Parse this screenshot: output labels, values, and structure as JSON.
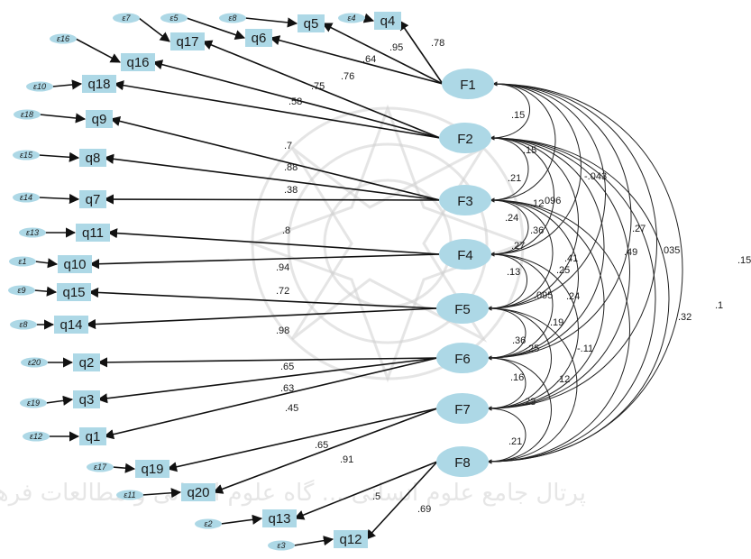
{
  "watermark": {
    "text": "پرتال جامع علوم انسانی ... گاه علوم انسانی و مطالعات فرهنگی"
  },
  "colors": {
    "node_fill": "#add8e6",
    "line": "#111111"
  },
  "factors": [
    {
      "id": "F1",
      "label": "F1"
    },
    {
      "id": "F2",
      "label": "F2"
    },
    {
      "id": "F3",
      "label": "F3"
    },
    {
      "id": "F4",
      "label": "F4"
    },
    {
      "id": "F5",
      "label": "F5"
    },
    {
      "id": "F6",
      "label": "F6"
    },
    {
      "id": "F7",
      "label": "F7"
    },
    {
      "id": "F8",
      "label": "F8"
    }
  ],
  "items": [
    {
      "id": "q4",
      "label": "q4",
      "error": "ε4",
      "factor": "F1",
      "loading": ".78"
    },
    {
      "id": "q5",
      "label": "q5",
      "error": "ε8",
      "factor": "F1",
      "loading": ".95"
    },
    {
      "id": "q6",
      "label": "q6",
      "error": "ε5",
      "factor": "F1",
      "loading": ".64"
    },
    {
      "id": "q17",
      "label": "q17",
      "error": "ε7",
      "factor": "F2",
      "loading": ".76"
    },
    {
      "id": "q16",
      "label": "q16",
      "error": "ε16",
      "factor": "F2",
      "loading": ".75"
    },
    {
      "id": "q18",
      "label": "q18",
      "error": "ε10",
      "factor": "F2",
      "loading": ".58"
    },
    {
      "id": "q9",
      "label": "q9",
      "error": "ε18",
      "factor": "F3",
      "loading": ".7"
    },
    {
      "id": "q8",
      "label": "q8",
      "error": "ε15",
      "factor": "F3",
      "loading": ".88"
    },
    {
      "id": "q7",
      "label": "q7",
      "error": "ε14",
      "factor": "F3",
      "loading": ".38"
    },
    {
      "id": "q11",
      "label": "q11",
      "error": "ε13",
      "factor": "F4",
      "loading": ".8"
    },
    {
      "id": "q10",
      "label": "q10",
      "error": "ε1",
      "factor": "F4",
      "loading": ".94"
    },
    {
      "id": "q15",
      "label": "q15",
      "error": "ε9",
      "factor": "F5",
      "loading": ".72"
    },
    {
      "id": "q14",
      "label": "q14",
      "error": "ε8",
      "factor": "F5",
      "loading": ".98"
    },
    {
      "id": "q2",
      "label": "q2",
      "error": "ε20",
      "factor": "F6",
      "loading": ".65"
    },
    {
      "id": "q3",
      "label": "q3",
      "error": "ε19",
      "factor": "F6",
      "loading": ".63"
    },
    {
      "id": "q1",
      "label": "q1",
      "error": "ε12",
      "factor": "F6",
      "loading": ".45"
    },
    {
      "id": "q19",
      "label": "q19",
      "error": "ε17",
      "factor": "F7",
      "loading": ".65"
    },
    {
      "id": "q20",
      "label": "q20",
      "error": "ε11",
      "factor": "F7",
      "loading": ".91"
    },
    {
      "id": "q13",
      "label": "q13",
      "error": "ε2",
      "factor": "F8",
      "loading": ".5"
    },
    {
      "id": "q12",
      "label": "q12",
      "error": "ε3",
      "factor": "F8",
      "loading": ".69"
    }
  ],
  "covariances": [
    {
      "a": "F1",
      "b": "F2",
      "value": ".15"
    },
    {
      "a": "F1",
      "b": "F3",
      "value": ".21"
    },
    {
      "a": "F1",
      "b": "F4",
      "value": ".096"
    },
    {
      "a": "F1",
      "b": "F5",
      "value": ".41"
    },
    {
      "a": "F1",
      "b": "F6",
      "value": ".49"
    },
    {
      "a": "F1",
      "b": "F7",
      "value": ".32"
    },
    {
      "a": "F1",
      "b": "F8",
      "value": ".15"
    },
    {
      "a": "F2",
      "b": "F3",
      "value": ".15"
    },
    {
      "a": "F2",
      "b": "F4",
      "value": ".12"
    },
    {
      "a": "F2",
      "b": "F5",
      "value": ".36"
    },
    {
      "a": "F2",
      "b": "F6",
      "value": ".24"
    },
    {
      "a": "F2",
      "b": "F7",
      "value": ".27"
    },
    {
      "a": "F2",
      "b": "F8",
      "value": ".1"
    },
    {
      "a": "F2",
      "b": "F8x",
      "value": "-.043"
    },
    {
      "a": "F3",
      "b": "F4",
      "value": ".24"
    },
    {
      "a": "F3",
      "b": "F5",
      "value": ".27"
    },
    {
      "a": "F3",
      "b": "F6",
      "value": ".25"
    },
    {
      "a": "F3",
      "b": "F7",
      "value": "-.11"
    },
    {
      "a": "F3",
      "b": "F8",
      "value": ".035"
    },
    {
      "a": "F4",
      "b": "F5",
      "value": ".13"
    },
    {
      "a": "F4",
      "b": "F6",
      "value": ".095"
    },
    {
      "a": "F4",
      "b": "F7",
      "value": ".19"
    },
    {
      "a": "F5",
      "b": "F6",
      "value": ".36"
    },
    {
      "a": "F5",
      "b": "F7",
      "value": ".25"
    },
    {
      "a": "F5",
      "b": "F8",
      "value": ".12"
    },
    {
      "a": "F6",
      "b": "F7",
      "value": ".16"
    },
    {
      "a": "F6",
      "b": "F8",
      "value": ".23"
    },
    {
      "a": "F7",
      "b": "F8",
      "value": ".21"
    }
  ]
}
